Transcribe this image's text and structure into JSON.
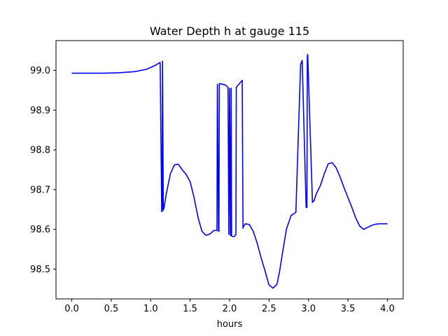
{
  "chart_data": {
    "type": "line",
    "title": "Water Depth h at gauge 115",
    "xlabel": "hours",
    "ylabel": "",
    "xlim": [
      -0.2,
      4.2
    ],
    "ylim": [
      98.425,
      99.075
    ],
    "xticks": [
      0.0,
      0.5,
      1.0,
      1.5,
      2.0,
      2.5,
      3.0,
      3.5,
      4.0
    ],
    "xtick_labels": [
      "0.0",
      "0.5",
      "1.0",
      "1.5",
      "2.0",
      "2.5",
      "3.0",
      "3.5",
      "4.0"
    ],
    "yticks": [
      98.5,
      98.6,
      98.7,
      98.8,
      98.9,
      99.0
    ],
    "ytick_labels": [
      "98.5",
      "98.6",
      "98.7",
      "98.8",
      "98.9",
      "99.0"
    ],
    "grid": false,
    "series": [
      {
        "name": "",
        "color": "#0000ff",
        "x": [
          0.0,
          0.2,
          0.4,
          0.6,
          0.8,
          0.95,
          1.05,
          1.12,
          1.14,
          1.145,
          1.15,
          1.16,
          1.17,
          1.175,
          1.2,
          1.25,
          1.3,
          1.35,
          1.4,
          1.45,
          1.5,
          1.55,
          1.6,
          1.65,
          1.7,
          1.75,
          1.8,
          1.84,
          1.845,
          1.86,
          1.865,
          1.87,
          1.95,
          1.98,
          1.99,
          2.0,
          2.01,
          2.015,
          2.02,
          2.025,
          2.03,
          2.04,
          2.06,
          2.08,
          2.085,
          2.095,
          2.16,
          2.17,
          2.175,
          2.2,
          2.25,
          2.3,
          2.35,
          2.4,
          2.45,
          2.5,
          2.55,
          2.6,
          2.63,
          2.67,
          2.72,
          2.78,
          2.84,
          2.9,
          2.91,
          2.92,
          2.97,
          2.98,
          2.985,
          2.99,
          3.05,
          3.07,
          3.08,
          3.1,
          3.15,
          3.2,
          3.25,
          3.3,
          3.35,
          3.4,
          3.45,
          3.5,
          3.55,
          3.6,
          3.65,
          3.7,
          3.75,
          3.8,
          3.85,
          3.9,
          3.95,
          4.0
        ],
        "y": [
          98.993,
          98.993,
          98.993,
          98.994,
          98.997,
          99.003,
          99.012,
          99.02,
          98.645,
          98.645,
          99.023,
          98.648,
          98.655,
          98.662,
          98.692,
          98.74,
          98.762,
          98.764,
          98.75,
          98.738,
          98.72,
          98.68,
          98.63,
          98.595,
          98.585,
          98.588,
          98.597,
          98.597,
          98.965,
          98.595,
          98.595,
          98.967,
          98.963,
          98.957,
          98.588,
          98.955,
          98.585,
          98.585,
          98.955,
          98.583,
          98.583,
          98.582,
          98.582,
          98.587,
          98.958,
          98.96,
          98.975,
          98.603,
          98.607,
          98.614,
          98.612,
          98.595,
          98.565,
          98.528,
          98.495,
          98.46,
          98.452,
          98.462,
          98.49,
          98.54,
          98.6,
          98.635,
          98.643,
          99.015,
          99.02,
          99.025,
          98.655,
          98.655,
          99.035,
          99.04,
          98.668,
          98.672,
          98.678,
          98.69,
          98.71,
          98.74,
          98.765,
          98.768,
          98.755,
          98.732,
          98.705,
          98.68,
          98.655,
          98.628,
          98.608,
          98.6,
          98.605,
          98.61,
          98.613,
          98.614,
          98.614,
          98.614
        ]
      }
    ]
  }
}
